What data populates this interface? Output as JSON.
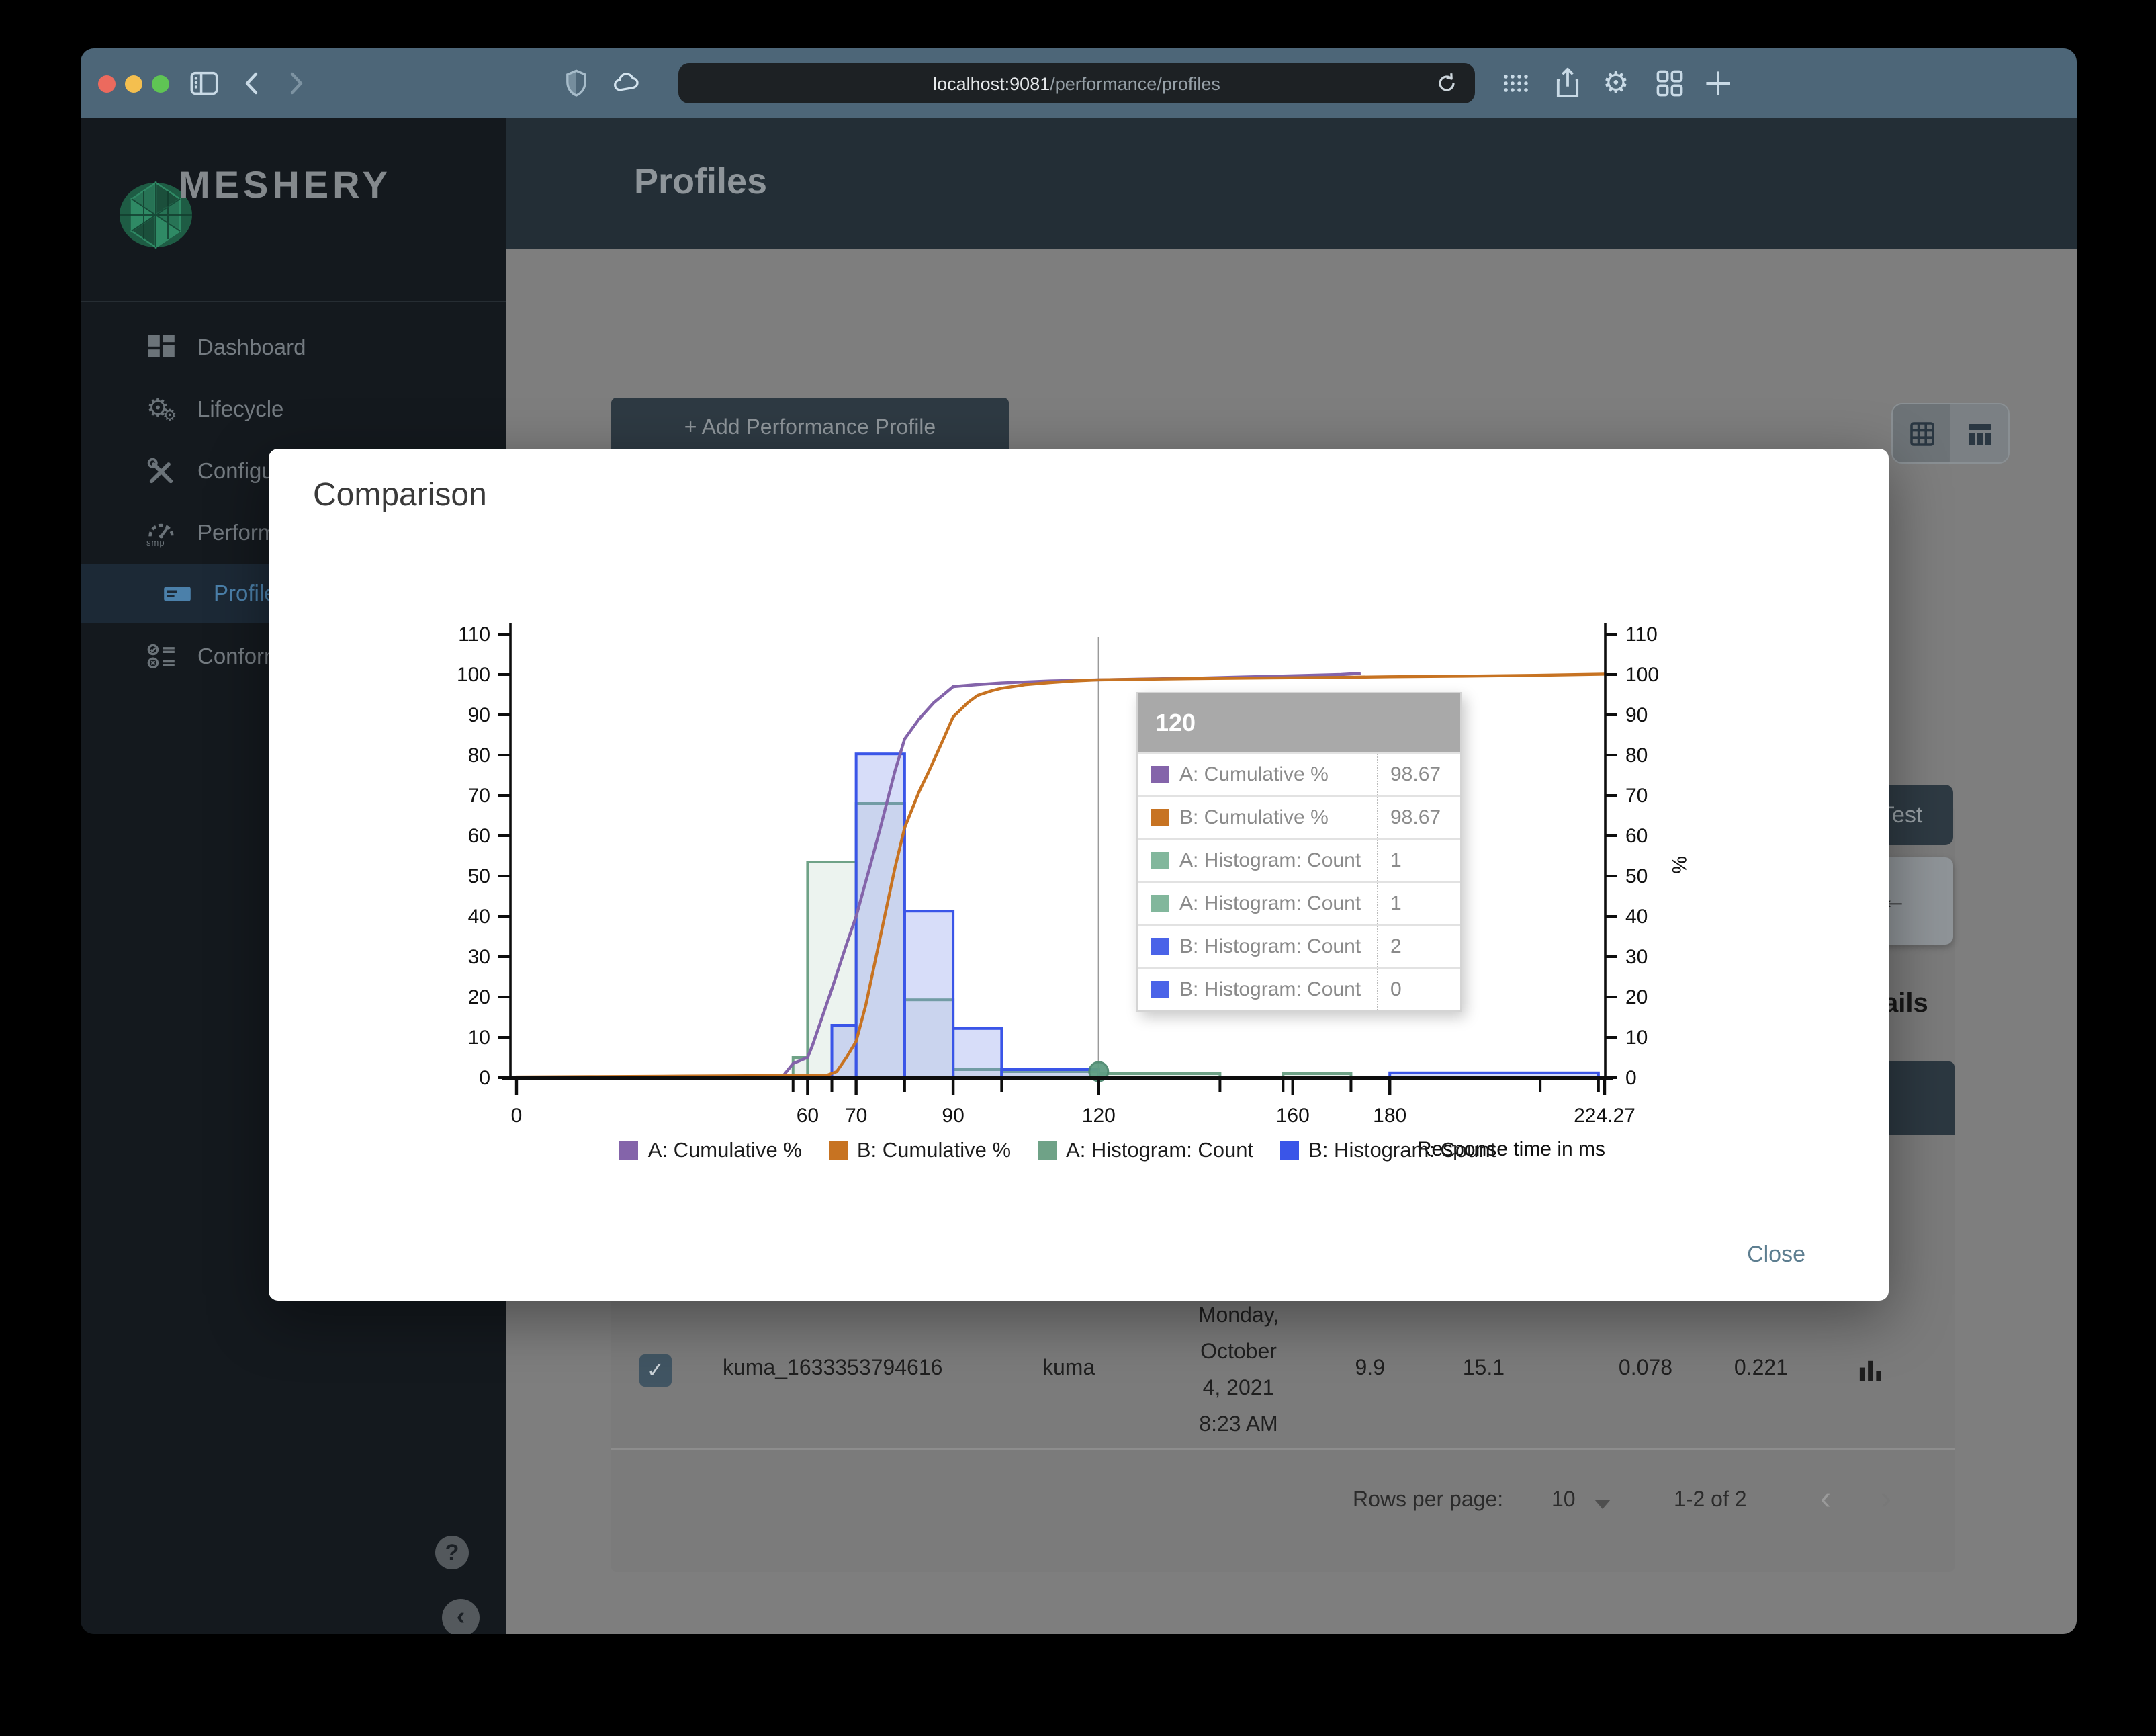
{
  "browser": {
    "url_host": "localhost:9081",
    "url_path": "/performance/profiles"
  },
  "app": {
    "logo_text": "MESHERY",
    "header_title": "Profiles"
  },
  "sidebar": {
    "items": [
      {
        "label": "Dashboard",
        "icon": "dashboard-icon",
        "active": false
      },
      {
        "label": "Lifecycle",
        "icon": "lifecycle-icon",
        "active": false
      },
      {
        "label": "Configuration",
        "icon": "configuration-icon",
        "active": false
      },
      {
        "label": "Performance",
        "icon": "performance-icon",
        "active": false,
        "icon_sub": "smp"
      },
      {
        "label": "Profiles",
        "icon": "profiles-icon",
        "active": true
      },
      {
        "label": "Conformance",
        "icon": "conformance-icon",
        "active": false
      }
    ],
    "help_glyph": "?",
    "collapse_glyph": "‹"
  },
  "content": {
    "add_profile_label": "+ Add Performance Profile",
    "test_button_fragment": "Test",
    "details_fragment": "ails",
    "arrow_fragment": "←"
  },
  "modal": {
    "title": "Comparison",
    "close_label": "Close"
  },
  "chart_data": {
    "type": "combo-histogram-line",
    "title": "",
    "xlabel": "Response time in ms",
    "ylabel_right": "%",
    "x_max": 224.27,
    "ylim": [
      0,
      110
    ],
    "y_tick_step": 10,
    "x_ticks_labeled": [
      0,
      60,
      70,
      90,
      120,
      160,
      180,
      224.27
    ],
    "x_ticks_minor": [
      57,
      65,
      80,
      100,
      145,
      158,
      172,
      211,
      223
    ],
    "grid": false,
    "legend_position": "bottom",
    "series": [
      {
        "name": "A: Cumulative %",
        "type": "line",
        "color": "#8464aa",
        "points": [
          [
            0,
            0
          ],
          [
            40,
            0
          ],
          [
            50,
            0.1
          ],
          [
            55,
            0.5
          ],
          [
            57,
            3.5
          ],
          [
            59,
            4.5
          ],
          [
            60,
            5
          ],
          [
            61,
            8
          ],
          [
            63,
            15
          ],
          [
            65,
            22
          ],
          [
            68,
            33
          ],
          [
            70,
            40
          ],
          [
            73,
            53
          ],
          [
            75,
            62
          ],
          [
            78,
            76
          ],
          [
            80,
            84
          ],
          [
            83,
            89
          ],
          [
            86,
            93
          ],
          [
            90,
            97
          ],
          [
            95,
            97.5
          ],
          [
            100,
            97.9
          ],
          [
            110,
            98.4
          ],
          [
            120,
            98.67
          ],
          [
            130,
            98.9
          ],
          [
            140,
            99.1
          ],
          [
            150,
            99.4
          ],
          [
            160,
            99.7
          ],
          [
            170,
            100
          ],
          [
            174,
            100.3
          ]
        ]
      },
      {
        "name": "B: Cumulative %",
        "type": "line",
        "color": "#c77322",
        "points": [
          [
            0,
            0.15
          ],
          [
            15,
            0.25
          ],
          [
            30,
            0.35
          ],
          [
            45,
            0.45
          ],
          [
            58,
            0.55
          ],
          [
            64,
            0.6
          ],
          [
            66,
            1.5
          ],
          [
            68,
            5
          ],
          [
            70,
            9
          ],
          [
            72,
            18
          ],
          [
            75,
            35
          ],
          [
            78,
            52
          ],
          [
            80,
            62
          ],
          [
            83,
            71
          ],
          [
            85,
            76
          ],
          [
            88,
            84
          ],
          [
            90,
            89.5
          ],
          [
            93,
            93
          ],
          [
            95,
            94.8
          ],
          [
            98,
            96
          ],
          [
            100,
            96.6
          ],
          [
            105,
            97.5
          ],
          [
            110,
            98
          ],
          [
            115,
            98.4
          ],
          [
            120,
            98.67
          ],
          [
            130,
            98.85
          ],
          [
            140,
            99
          ],
          [
            155,
            99.15
          ],
          [
            170,
            99.3
          ],
          [
            180,
            99.45
          ],
          [
            195,
            99.6
          ],
          [
            210,
            99.8
          ],
          [
            224.27,
            100.1
          ]
        ]
      },
      {
        "name": "A: Histogram: Count",
        "type": "histogram",
        "color": "#6fa287",
        "fill": "rgba(111,162,135,0.13)",
        "bars": [
          [
            57,
            60,
            5
          ],
          [
            60,
            70,
            53.5
          ],
          [
            70,
            80,
            68
          ],
          [
            80,
            90,
            19.3
          ],
          [
            90,
            100,
            2
          ],
          [
            100,
            120,
            1.5
          ],
          [
            120,
            145,
            1
          ],
          [
            158,
            172,
            1
          ]
        ]
      },
      {
        "name": "B: Histogram: Count",
        "type": "histogram",
        "color": "#3a55e8",
        "fill": "rgba(122,143,235,0.30)",
        "bars": [
          [
            65,
            70,
            13
          ],
          [
            70,
            80,
            80.3
          ],
          [
            80,
            90,
            41.3
          ],
          [
            90,
            100,
            12.2
          ],
          [
            100,
            120,
            2
          ],
          [
            180,
            223,
            1.2
          ]
        ]
      }
    ],
    "crosshair_x": 120,
    "marker": {
      "x": 120,
      "y": 1.5,
      "color": "#5f9e83"
    }
  },
  "tooltip": {
    "header": "120",
    "rows": [
      {
        "series": "A: Cumulative %",
        "color": "#8464aa",
        "value": "98.67"
      },
      {
        "series": "B: Cumulative %",
        "color": "#c77322",
        "value": "98.67"
      },
      {
        "series": "A: Histogram: Count",
        "color": "#82b79c",
        "value": "1"
      },
      {
        "series": "A: Histogram: Count",
        "color": "#82b79c",
        "value": "1"
      },
      {
        "series": "B: Histogram: Count",
        "color": "#4a63e8",
        "value": "2"
      },
      {
        "series": "B: Histogram: Count",
        "color": "#4a63e8",
        "value": "0"
      }
    ]
  },
  "table": {
    "row": {
      "name": "kuma_1633353794616",
      "mesh": "kuma",
      "date_lines": [
        "Monday,",
        "October",
        "4, 2021",
        "8:23 AM"
      ],
      "qps": "9.9",
      "duration": "15.1",
      "p50": "0.078",
      "p99": "0.221"
    }
  },
  "pagination": {
    "rows_per_page_label": "Rows per page:",
    "rows_per_page": "10",
    "range": "1-2 of 2",
    "prev_glyph": "‹",
    "next_glyph": "›"
  }
}
